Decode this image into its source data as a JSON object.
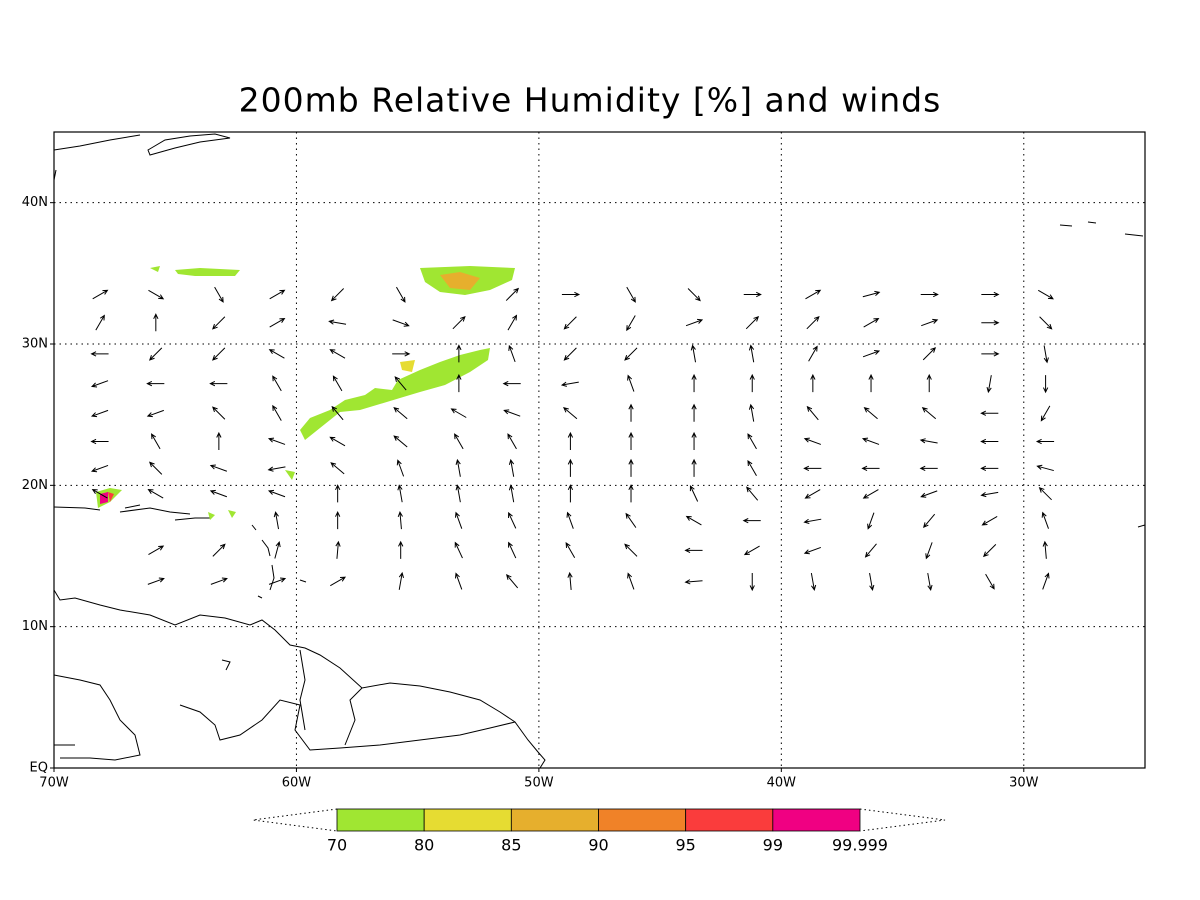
{
  "title": "200mb Relative Humidity [%] and winds",
  "map": {
    "xlim": [
      -70,
      -25
    ],
    "ylim": [
      0,
      45
    ],
    "xticks": [
      {
        "value": -70,
        "label": "70W"
      },
      {
        "value": -60,
        "label": "60W"
      },
      {
        "value": -50,
        "label": "50W"
      },
      {
        "value": -40,
        "label": "40W"
      },
      {
        "value": -30,
        "label": "30W"
      }
    ],
    "yticks": [
      {
        "value": 0,
        "label": "EQ"
      },
      {
        "value": 10,
        "label": "10N"
      },
      {
        "value": 20,
        "label": "20N"
      },
      {
        "value": 30,
        "label": "30N"
      },
      {
        "value": 40,
        "label": "40N"
      }
    ],
    "grid": true,
    "winds": {
      "lon": [
        -68.1,
        -65.8,
        -63.2,
        -60.8,
        -58.3,
        -55.7,
        -53.3,
        -51.1,
        -48.7,
        -46.2,
        -43.6,
        -41.2,
        -38.7,
        -36.3,
        -33.9,
        -31.4,
        -29.1
      ],
      "lat": [
        33.5,
        31.5,
        29.3,
        27.2,
        25.1,
        23.1,
        21.2,
        19.4,
        17.5,
        15.4,
        13.2
      ],
      "direction_deg": [
        [
          30,
          -30,
          -60,
          30,
          225,
          -60,
          null,
          45,
          0,
          -60,
          -45,
          0,
          30,
          15,
          0,
          0,
          -30
        ],
        [
          60,
          90,
          225,
          30,
          170,
          -20,
          45,
          60,
          225,
          240,
          20,
          45,
          45,
          30,
          20,
          0,
          -45
        ],
        [
          180,
          225,
          225,
          150,
          150,
          0,
          90,
          110,
          225,
          225,
          100,
          100,
          60,
          20,
          45,
          0,
          -80
        ],
        [
          200,
          180,
          180,
          120,
          120,
          130,
          90,
          180,
          190,
          110,
          90,
          90,
          90,
          90,
          90,
          -100,
          -90
        ],
        [
          200,
          200,
          135,
          120,
          130,
          140,
          150,
          160,
          140,
          90,
          90,
          100,
          130,
          140,
          140,
          180,
          -120
        ],
        [
          180,
          120,
          90,
          160,
          150,
          140,
          120,
          120,
          90,
          90,
          90,
          120,
          160,
          160,
          170,
          180,
          180
        ],
        [
          200,
          135,
          160,
          190,
          140,
          110,
          100,
          100,
          90,
          90,
          90,
          120,
          180,
          180,
          180,
          180,
          165
        ],
        [
          150,
          150,
          160,
          160,
          90,
          100,
          100,
          100,
          90,
          90,
          115,
          130,
          210,
          210,
          200,
          190,
          135
        ],
        [
          null,
          null,
          null,
          100,
          90,
          95,
          110,
          115,
          110,
          125,
          150,
          180,
          190,
          250,
          230,
          210,
          110
        ],
        [
          null,
          30,
          45,
          75,
          85,
          90,
          115,
          115,
          120,
          135,
          180,
          210,
          200,
          230,
          250,
          225,
          95
        ],
        [
          null,
          20,
          20,
          20,
          30,
          80,
          110,
          130,
          95,
          110,
          185,
          -90,
          -80,
          -80,
          -80,
          -60,
          70
        ]
      ]
    }
  },
  "colorbar": {
    "levels": [
      70,
      80,
      85,
      90,
      95,
      99,
      99.999
    ],
    "colors": [
      "#a0e632",
      "#e6dc32",
      "#e6af2d",
      "#f08228",
      "#fa3c3c",
      "#f00082"
    ]
  }
}
